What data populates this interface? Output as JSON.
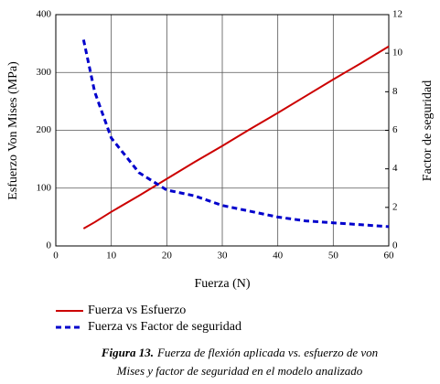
{
  "chart_data": {
    "type": "line",
    "x": [
      5,
      7,
      10,
      15,
      20,
      25,
      30,
      35,
      40,
      45,
      50,
      55,
      60
    ],
    "series": [
      {
        "name": "Fuerza vs Esfuerzo",
        "color": "#cc0000",
        "dash": false,
        "values": [
          30,
          41,
          59,
          87,
          116,
          145,
          173,
          202,
          230,
          259,
          288,
          316,
          345
        ]
      },
      {
        "name": "Fuerza vs Factor de seguridad",
        "color": "#0000cc",
        "dash": true,
        "axis": "y2",
        "values": [
          10.7,
          8.0,
          5.6,
          3.8,
          2.9,
          2.6,
          2.1,
          1.8,
          1.5,
          1.3,
          1.2,
          1.1,
          1.0
        ]
      }
    ],
    "xlabel": "Fuerza (N)",
    "ylabel": "Esfuerzo Von Mises (MPa)",
    "y2label": "Factor de seguridad",
    "xlim": [
      0,
      60
    ],
    "xticks": [
      0,
      10,
      20,
      30,
      40,
      50,
      60
    ],
    "ylim": [
      0,
      400
    ],
    "yticks": [
      0,
      100,
      200,
      300,
      400
    ],
    "y2lim": [
      0,
      12
    ],
    "y2ticks": [
      0,
      2,
      4,
      6,
      8,
      10,
      12
    ],
    "grid": true,
    "caption_label": "Figura 13.",
    "caption": [
      "Fuerza de flexión aplicada vs. esfuerzo de von",
      "Mises y factor de seguridad en el modelo analizado"
    ]
  }
}
